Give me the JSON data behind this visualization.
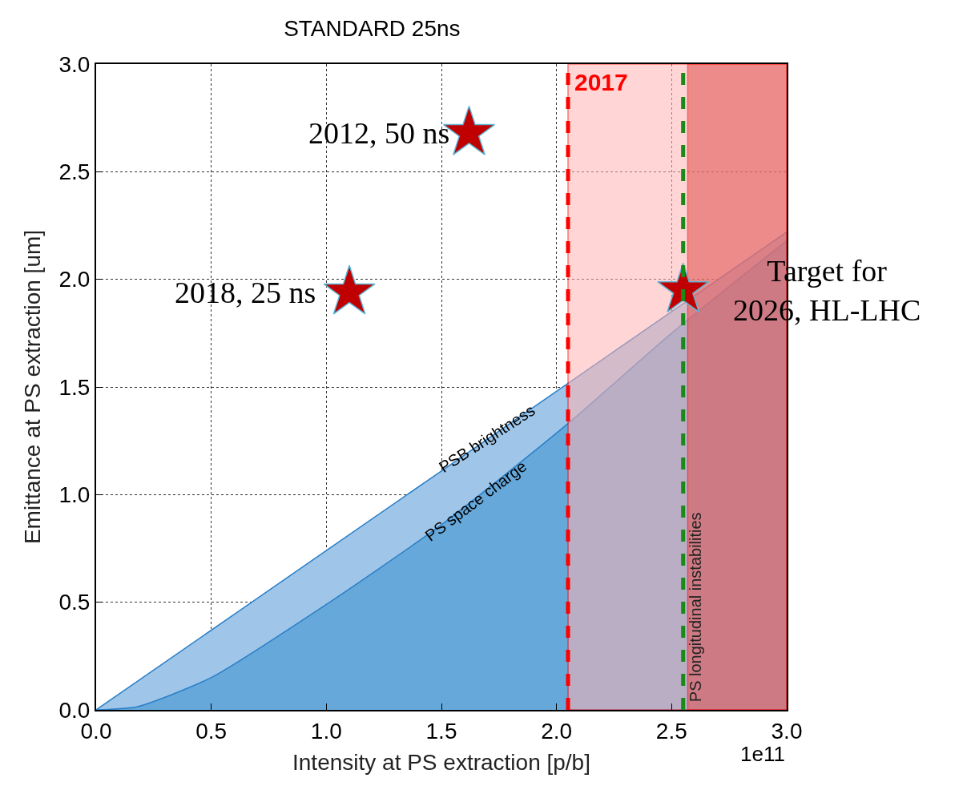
{
  "chart_data": {
    "type": "area",
    "title": "STANDARD 25ns",
    "xlabel": "Intensity at PS extraction [p/b]",
    "ylabel": "Emittance at PS extraction [um]",
    "xlim": [
      0,
      3.0
    ],
    "ylim": [
      0,
      3.0
    ],
    "xticks": [
      {
        "value": 0,
        "label": "0.0"
      },
      0.5,
      {
        "value": 1,
        "label": "1.0"
      },
      1.5,
      {
        "value": 2,
        "label": "2.0"
      },
      2.5,
      {
        "value": 3,
        "label": "3.0"
      }
    ],
    "yticks": [
      {
        "value": 0,
        "label": "0.0"
      },
      0.5,
      {
        "value": 1,
        "label": "1.0"
      },
      1.5,
      {
        "value": 2,
        "label": "2.0"
      },
      2.5,
      {
        "value": 3,
        "label": "3.0"
      }
    ],
    "grid": true,
    "series": [
      {
        "color": "#9fc6e8",
        "x": [
          0,
          1.0,
          2.0,
          3.0
        ],
        "values": [
          0,
          0.74,
          1.48,
          2.22
        ]
      },
      {
        "color": "#66a8da",
        "x": [
          0,
          0.18,
          0.5,
          1.0,
          1.5,
          2.05,
          2.5,
          3.0
        ],
        "values": [
          0,
          0.015,
          0.15,
          0.49,
          0.86,
          1.33,
          1.75,
          2.18
        ]
      },
      {
        "type": "scatter",
        "marker": "star",
        "color": "#c00000",
        "x": [
          1.62,
          1.1,
          2.55
        ],
        "values": [
          2.68,
          1.94,
          1.95
        ]
      }
    ],
    "bands": [
      {
        "axis": "x",
        "from": 2.05,
        "to": 3.0,
        "color": "#ffb3b3",
        "label": "2017"
      },
      {
        "axis": "x",
        "from": 2.57,
        "to": 3.0,
        "color": "#e05050"
      }
    ],
    "ref_lines": [
      {
        "axis": "x",
        "value": 2.05,
        "color": "#ff0000",
        "line_style": "dashed"
      },
      {
        "axis": "x",
        "value": 2.55,
        "label": "PS longitudinal instabilities",
        "color": "#1a8a1a",
        "line_style": "dashed"
      }
    ],
    "annotations": [
      {
        "text": "2012, 50 ns",
        "x": 1.62,
        "y": 2.68
      },
      {
        "text": "2018, 25 ns",
        "x": 1.1,
        "y": 1.94
      },
      {
        "text": "Target for\n2026, HL-LHC",
        "x": 2.55,
        "y": 1.95
      },
      {
        "text": "PSB brightness",
        "x": 1.7,
        "y": 1.26
      },
      {
        "text": "PS space charge",
        "x": 1.65,
        "y": 0.97
      },
      "1e11"
    ]
  }
}
